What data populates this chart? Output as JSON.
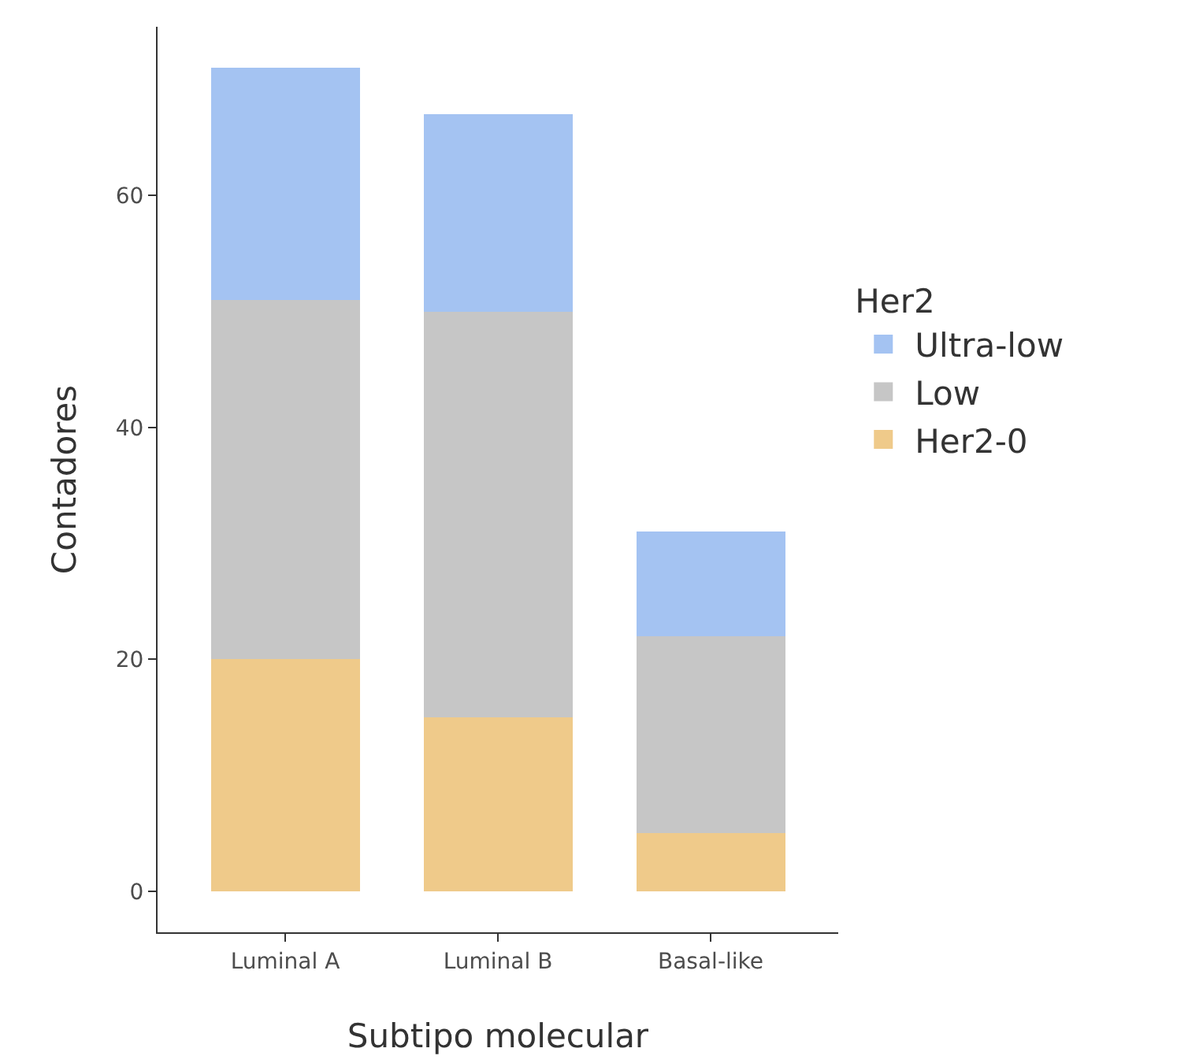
{
  "chart_data": {
    "type": "bar",
    "stacked": true,
    "xlabel": "Subtipo molecular",
    "ylabel": "Contadores",
    "legend_title": "Her2",
    "legend": "right",
    "categories": [
      "Luminal A",
      "Luminal B",
      "Basal-like"
    ],
    "series": [
      {
        "name": "Her2-0",
        "color": "#efca8a",
        "values": [
          20,
          15,
          5
        ]
      },
      {
        "name": "Low",
        "color": "#c6c6c6",
        "values": [
          31,
          35,
          17
        ]
      },
      {
        "name": "Ultra-low",
        "color": "#a4c3f2",
        "values": [
          20,
          17,
          9
        ]
      }
    ],
    "ylim": [
      -3.55,
      74.55
    ],
    "yticks": [
      0,
      20,
      40,
      60
    ],
    "grid": false
  }
}
